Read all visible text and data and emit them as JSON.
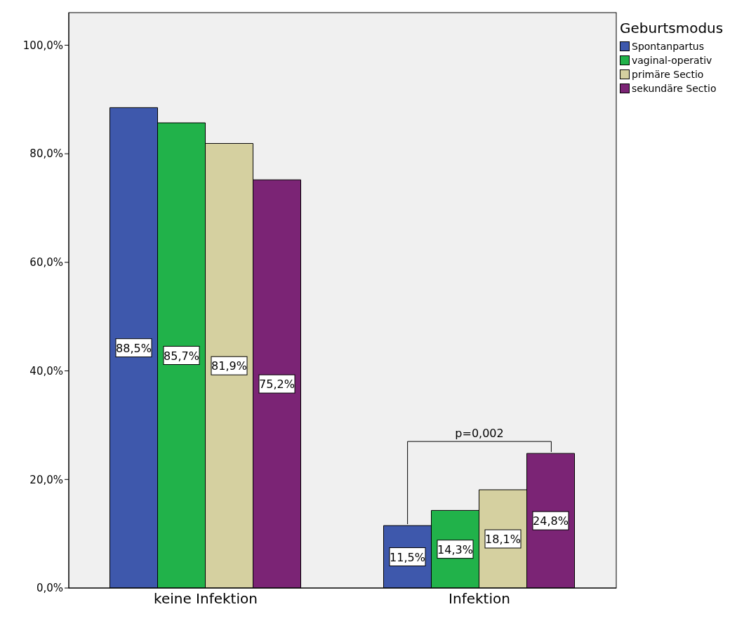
{
  "chart_data": {
    "type": "bar",
    "categories": [
      "keine Infektion",
      "Infektion"
    ],
    "series": [
      {
        "name": "Spontanpartus",
        "color": "#3e58ac",
        "values": [
          88.5,
          11.5
        ],
        "value_labels": [
          "88,5%",
          "11,5%"
        ]
      },
      {
        "name": "vaginal-operativ",
        "color": "#21b24a",
        "values": [
          85.7,
          14.3
        ],
        "value_labels": [
          "85,7%",
          "14,3%"
        ]
      },
      {
        "name": "primäre Sectio",
        "color": "#d5d0a0",
        "values": [
          81.9,
          18.1
        ],
        "value_labels": [
          "81,9%",
          "18,1%"
        ]
      },
      {
        "name": "sekundäre Sectio",
        "color": "#7b2475",
        "values": [
          75.2,
          24.8
        ],
        "value_labels": [
          "75,2%",
          "24,8%"
        ]
      }
    ],
    "legend_title": "Geburtsmodus",
    "legend": "top right",
    "grid": false,
    "ylim": [
      0,
      106
    ],
    "yticks": [
      {
        "value": 0,
        "label": "0,0%"
      },
      {
        "value": 20,
        "label": "20,0%"
      },
      {
        "value": 40,
        "label": "40,0%"
      },
      {
        "value": 60,
        "label": "60,0%"
      },
      {
        "value": 80,
        "label": "80,0%"
      },
      {
        "value": 100,
        "label": "100,0%"
      }
    ],
    "annotations": [
      "p=0,002"
    ]
  }
}
